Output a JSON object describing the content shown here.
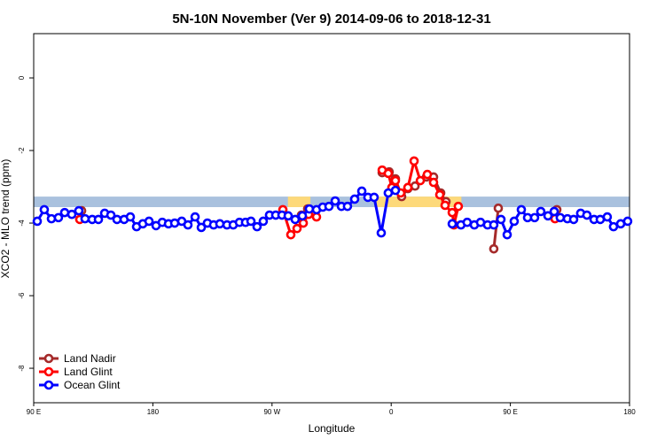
{
  "chart_data": {
    "type": "line",
    "title": "5N-10N November (Ver 9)   2014-09-06 to 2018-12-31",
    "xlabel": "Longitude",
    "ylabel": "XCO2 - MLO trend (ppm)",
    "xlim": [
      90,
      540
    ],
    "ylim": [
      -8.95,
      1.22
    ],
    "xticks": [
      {
        "value": 90,
        "label": "90 E"
      },
      180,
      {
        "value": 270,
        "label": "90 W"
      },
      {
        "value": 360,
        "label": "0"
      },
      {
        "value": 450,
        "label": "90 E"
      },
      {
        "value": 540,
        "label": "180"
      }
    ],
    "yticks": [
      0,
      -2,
      -4,
      -6,
      -8
    ],
    "legend": "bottom-left",
    "reference_band": {
      "ylim": [
        -3.56,
        -3.27
      ],
      "color": "#a9c1de"
    },
    "land_spans": {
      "ranges": [
        [
          282,
          299
        ],
        [
          349,
          413
        ]
      ],
      "color": "#fdd97a"
    },
    "series": [
      {
        "name": "Land Nadir",
        "color": "#a52a2a",
        "x": [
          126.2,
          null,
          292.2,
          296.9,
          null,
          353.2,
          358.5,
          363.2,
          367.9,
          372.6,
          378.0,
          386.6,
          392.0,
          397.4,
          401.4,
          null,
          437.5,
          440.9,
          null,
          485.1
        ],
        "values": [
          -3.66,
          null,
          -3.78,
          -3.61,
          null,
          -2.61,
          -2.59,
          -2.78,
          -3.27,
          -3.05,
          -2.98,
          -2.73,
          -2.73,
          -3.17,
          -3.41,
          null,
          -4.71,
          -3.59,
          null,
          -3.63
        ]
      },
      {
        "name": "Land Glint",
        "color": "#ff0000",
        "x": [
          124.8,
          null,
          278.2,
          284.2,
          288.9,
          293.6,
          297.6,
          303.6,
          null,
          353.2,
          357.8,
          360.5,
          363.2,
          367.2,
          372.6,
          377.3,
          382.0,
          387.3,
          392.0,
          396.7,
          400.7,
          406.1,
          407.4,
          410.7,
          null,
          483.7
        ],
        "values": [
          -3.9,
          null,
          -3.63,
          -4.32,
          -4.15,
          -4.0,
          -3.76,
          -3.83,
          null,
          -2.54,
          -2.63,
          -3.02,
          -2.83,
          -3.17,
          -3.02,
          -2.29,
          -2.83,
          -2.66,
          -2.88,
          -3.22,
          -3.51,
          -3.71,
          -4.05,
          -3.54,
          null,
          -3.88
        ]
      },
      {
        "name": "Ocean Glint",
        "color": "#0000ff",
        "x": [
          92.7,
          98.0,
          103.4,
          108.7,
          113.4,
          118.8,
          124.1,
          128.8,
          134.2,
          138.9,
          143.6,
          148.3,
          152.9,
          158.3,
          163.0,
          167.7,
          172.4,
          177.1,
          182.4,
          187.1,
          191.8,
          196.5,
          201.8,
          206.5,
          211.9,
          216.6,
          221.2,
          225.9,
          230.6,
          236.0,
          240.7,
          245.4,
          250.0,
          254.1,
          258.7,
          263.4,
          268.1,
          272.8,
          277.5,
          282.2,
          287.5,
          292.9,
          298.2,
          303.6,
          308.3,
          313.0,
          317.7,
          322.4,
          327.0,
          332.4,
          337.8,
          342.4,
          347.1,
          352.5,
          357.8,
          363.2,
          null,
          406.1,
          412.7,
          417.4,
          422.8,
          427.5,
          432.8,
          437.5,
          442.9,
          447.6,
          452.9,
          458.3,
          463.0,
          468.3,
          473.0,
          478.4,
          483.1,
          487.7,
          493.1,
          497.8,
          503.1,
          507.8,
          513.2,
          517.9,
          523.2,
          527.9,
          533.3,
          538.6
        ],
        "values": [
          -3.95,
          -3.63,
          -3.88,
          -3.85,
          -3.71,
          -3.76,
          -3.66,
          -3.88,
          -3.9,
          -3.9,
          -3.73,
          -3.78,
          -3.9,
          -3.9,
          -3.83,
          -4.1,
          -4.02,
          -3.95,
          -4.07,
          -3.98,
          -4.02,
          -4.0,
          -3.95,
          -4.05,
          -3.83,
          -4.12,
          -4.0,
          -4.05,
          -4.02,
          -4.05,
          -4.05,
          -3.98,
          -3.98,
          -3.95,
          -4.1,
          -3.95,
          -3.78,
          -3.78,
          -3.78,
          -3.8,
          -3.9,
          -3.8,
          -3.61,
          -3.63,
          -3.56,
          -3.54,
          -3.39,
          -3.54,
          -3.54,
          -3.34,
          -3.12,
          -3.29,
          -3.29,
          -4.27,
          -3.17,
          -3.1,
          null,
          -4.02,
          -4.05,
          -3.98,
          -4.05,
          -3.98,
          -4.05,
          -4.05,
          -3.9,
          -4.32,
          -3.95,
          -3.63,
          -3.85,
          -3.85,
          -3.68,
          -3.8,
          -3.68,
          -3.85,
          -3.88,
          -3.9,
          -3.73,
          -3.78,
          -3.9,
          -3.9,
          -3.83,
          -4.1,
          -4.02,
          -3.95
        ]
      }
    ]
  }
}
